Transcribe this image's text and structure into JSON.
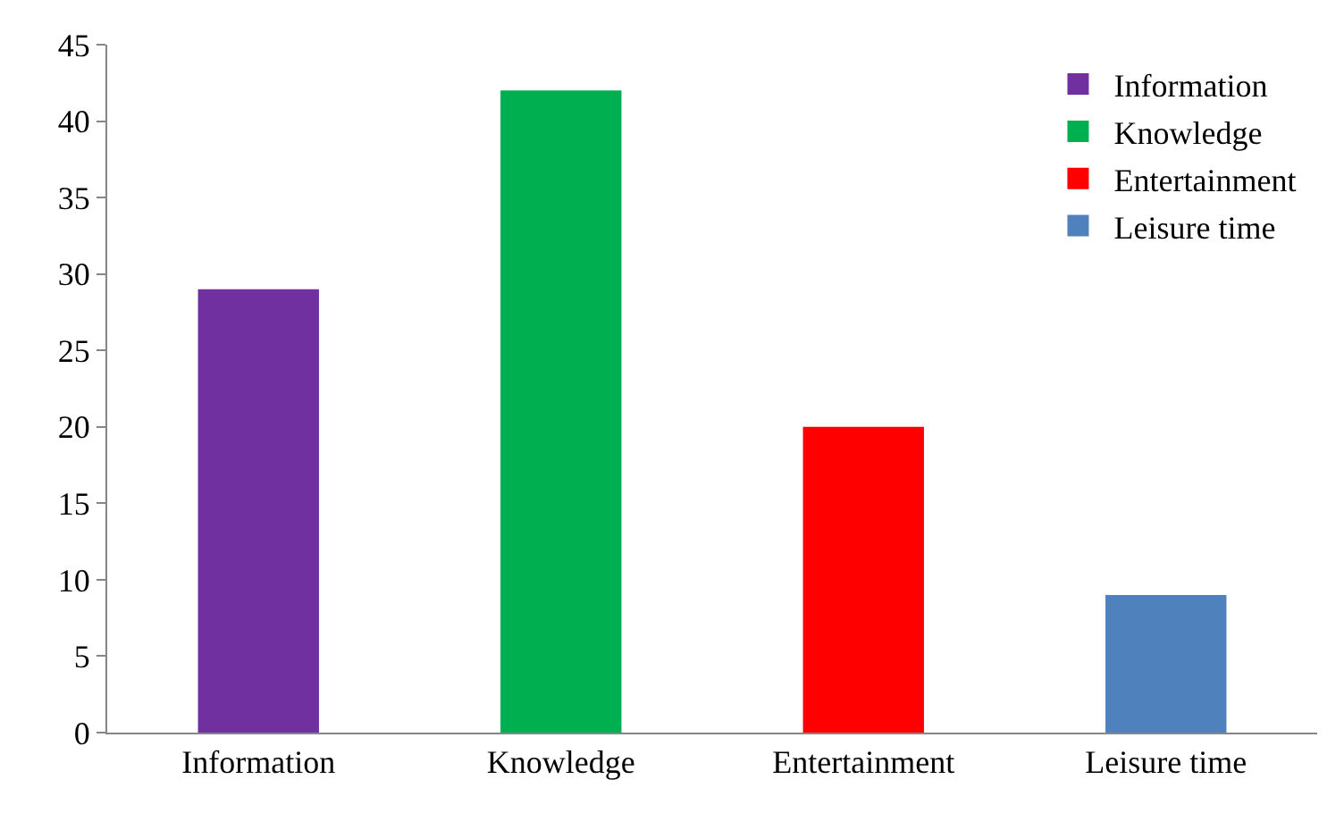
{
  "chart_data": {
    "type": "bar",
    "categories": [
      "Information",
      "Knowledge",
      "Entertainment",
      "Leisure time"
    ],
    "series": [
      {
        "name": "Information",
        "color": "#7030a0",
        "values": [
          29,
          null,
          null,
          null
        ]
      },
      {
        "name": "Knowledge",
        "color": "#00b050",
        "values": [
          null,
          42,
          null,
          null
        ]
      },
      {
        "name": "Entertainment",
        "color": "#ff0000",
        "values": [
          null,
          null,
          20,
          null
        ]
      },
      {
        "name": "Leisure time",
        "color": "#4f81bd",
        "values": [
          null,
          null,
          null,
          9
        ]
      }
    ],
    "ylim": [
      0,
      45
    ],
    "yticks": [
      0,
      5,
      10,
      15,
      20,
      25,
      30,
      35,
      40,
      45
    ],
    "legend": "top right"
  }
}
